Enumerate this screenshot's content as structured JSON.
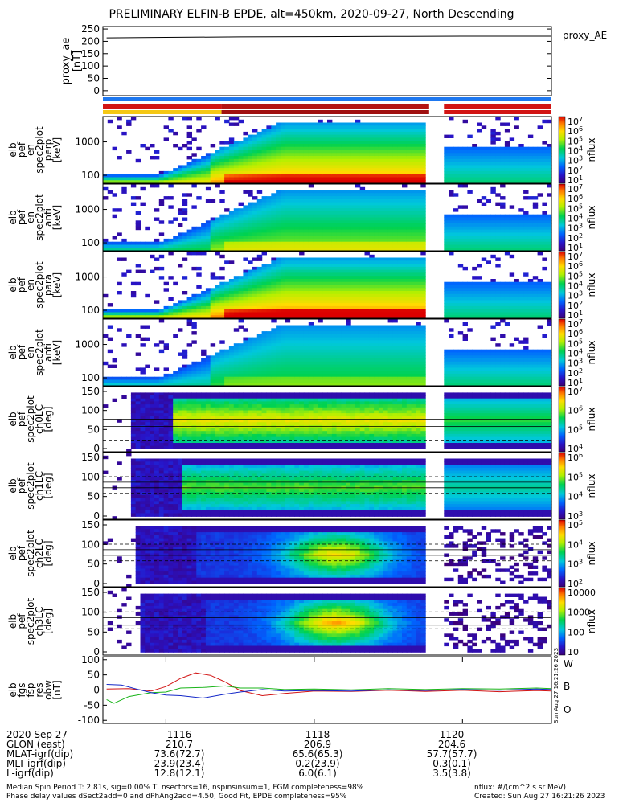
{
  "title": "PRELIMINARY ELFIN-B EPDE, alt=450km, 2020-09-27, North Descending",
  "colors": {
    "w_line": "#d21414",
    "b_line": "#19b419",
    "o_line": "#1428c8",
    "bar_blue": "#1e78f0",
    "bar_red": "#d21414",
    "bar_yellow": "#f5c814"
  },
  "chart_data": [
    {
      "type": "line",
      "panel": "proxy_ae",
      "ylabel": "proxy_ae [nT]",
      "legend": "proxy_AE",
      "yticks": [
        "250",
        "200",
        "150",
        "100",
        "50",
        "0"
      ],
      "ylim": [
        -20,
        260
      ],
      "x": [
        "1115.2",
        "1116.0",
        "1117.0",
        "1118.0",
        "1119.0",
        "1120.0",
        "1121.2"
      ],
      "values": [
        214,
        216,
        218,
        219,
        220,
        221,
        221
      ]
    },
    {
      "type": "heatmap",
      "panel": "elb pef en spec2plot perp",
      "ylabel": [
        "elb",
        "pef",
        "en",
        "spec2plot",
        "perp",
        "[keV]"
      ],
      "yticks": [
        "1000",
        "100"
      ],
      "colorbar_label": "nflux",
      "colorbar_ticks": [
        "10^7",
        "10^6",
        "10^5",
        "10^4",
        "10^3",
        "10^2",
        "10^1"
      ]
    },
    {
      "type": "heatmap",
      "panel": "elb pef en spec2plot anti",
      "ylabel": [
        "elb",
        "pef",
        "en",
        "spec2plot",
        "anti",
        "[keV]"
      ],
      "yticks": [
        "1000",
        "100"
      ],
      "colorbar_label": "nflux",
      "colorbar_ticks": [
        "10^7",
        "10^6",
        "10^5",
        "10^4",
        "10^3",
        "10^2",
        "10^1"
      ]
    },
    {
      "type": "heatmap",
      "panel": "elb pef en spec2plot para",
      "ylabel": [
        "elb",
        "pef",
        "en",
        "spec2plot",
        "para",
        "[keV]"
      ],
      "yticks": [
        "1000",
        "100"
      ],
      "colorbar_label": "nflux",
      "colorbar_ticks": [
        "10^7",
        "10^6",
        "10^5",
        "10^4",
        "10^3",
        "10^2",
        "10^1"
      ]
    },
    {
      "type": "heatmap",
      "panel": "elb pef en spec2plot anti",
      "ylabel": [
        "elb",
        "pef",
        "en",
        "spec2plot",
        "anti",
        "[keV]"
      ],
      "yticks": [
        "1000",
        "100"
      ],
      "colorbar_label": "nflux",
      "colorbar_ticks": [
        "10^7",
        "10^6",
        "10^5",
        "10^4",
        "10^3",
        "10^2",
        "10^1"
      ]
    },
    {
      "type": "heatmap",
      "panel": "elb pef spec2plot ch0LC",
      "ylabel": [
        "elb",
        "pef",
        "spec2plot",
        "ch0LC",
        "[deg]"
      ],
      "yticks": [
        "150",
        "100",
        "50",
        "0"
      ],
      "colorbar_label": "nflux",
      "colorbar_ticks": [
        "10^7",
        "10^6",
        "10^5",
        "10^4"
      ]
    },
    {
      "type": "heatmap",
      "panel": "elb pef spec2plot ch1LC",
      "ylabel": [
        "elb",
        "pef",
        "spec2plot",
        "ch1LC",
        "[deg]"
      ],
      "yticks": [
        "150",
        "100",
        "50",
        "0"
      ],
      "colorbar_label": "nflux",
      "colorbar_ticks": [
        "10^6",
        "10^5",
        "10^4",
        "10^3"
      ]
    },
    {
      "type": "heatmap",
      "panel": "elb pef spec2plot ch2LC",
      "ylabel": [
        "elb",
        "pef",
        "spec2plot",
        "ch2LC",
        "[deg]"
      ],
      "yticks": [
        "150",
        "100",
        "50",
        "0"
      ],
      "colorbar_label": "nflux",
      "colorbar_ticks": [
        "10^5",
        "10^4",
        "10^3",
        "10^2"
      ]
    },
    {
      "type": "heatmap",
      "panel": "elb pef spec2plot ch3LC",
      "ylabel": [
        "elb",
        "pef",
        "spec2plot",
        "ch3LC",
        "[deg]"
      ],
      "yticks": [
        "150",
        "100",
        "50",
        "0"
      ],
      "colorbar_label": "nflux",
      "colorbar_ticks": [
        "10000",
        "1000",
        "100",
        "10"
      ]
    },
    {
      "type": "line",
      "panel": "elb fgs fsp res obw",
      "ylabel": [
        "elb",
        "fgs",
        "fsp",
        "res",
        "obw",
        "[nT]"
      ],
      "yticks": [
        "100",
        "50",
        "0",
        "-50",
        "-100"
      ],
      "ylim": [
        -110,
        110
      ],
      "legend": [
        "W",
        "B",
        "O"
      ],
      "series": [
        {
          "name": "W",
          "x": [
            1115.2,
            1115.5,
            1115.8,
            1116.0,
            1116.2,
            1116.4,
            1116.6,
            1116.8,
            1117.0,
            1117.3,
            1117.6,
            1118.0,
            1118.5,
            1119.0,
            1119.5,
            1120.0,
            1120.5,
            1121.0,
            1121.2
          ],
          "values": [
            5,
            3,
            -2,
            10,
            40,
            55,
            50,
            25,
            0,
            -20,
            -10,
            -5,
            -3,
            -2,
            -3,
            -2,
            -4,
            -3,
            -2
          ]
        },
        {
          "name": "B",
          "x": [
            1115.2,
            1115.3,
            1115.5,
            1115.8,
            1116.0,
            1116.2,
            1116.5,
            1116.8,
            1117.0,
            1117.3,
            1117.6,
            1118.0,
            1118.5,
            1119.0,
            1119.5,
            1120.0,
            1120.5,
            1121.0,
            1121.2
          ],
          "values": [
            -30,
            -45,
            -20,
            -10,
            -5,
            5,
            10,
            12,
            8,
            5,
            3,
            2,
            2,
            3,
            3,
            3,
            5,
            5,
            6
          ]
        },
        {
          "name": "O",
          "x": [
            1115.2,
            1115.4,
            1115.6,
            1115.8,
            1116.0,
            1116.2,
            1116.5,
            1116.8,
            1117.0,
            1117.3,
            1117.6,
            1118.0,
            1118.5,
            1119.0,
            1119.5,
            1120.0,
            1120.5,
            1121.0,
            1121.2
          ],
          "values": [
            20,
            15,
            5,
            -10,
            -15,
            -20,
            -25,
            -15,
            -5,
            0,
            -2,
            -3,
            -2,
            -1,
            0,
            0,
            1,
            2,
            3
          ]
        }
      ]
    }
  ],
  "time_axis": {
    "row_labels": [
      "2020 Sep 27",
      "GLON (east)",
      "MLAT-igrf(dip)",
      "MLT-igrf(dip)",
      "L-igrf(dip)"
    ],
    "columns": [
      {
        "values": [
          "1116",
          "210.7",
          "73.6(72.7)",
          "23.9(23.4)",
          "12.8(12.1)"
        ]
      },
      {
        "values": [
          "1118",
          "206.9",
          "65.6(65.3)",
          "0.2(23.9)",
          "6.0(6.1)"
        ]
      },
      {
        "values": [
          "1120",
          "204.6",
          "57.7(57.7)",
          "0.3(0.1)",
          "3.5(3.8)"
        ]
      }
    ]
  },
  "footer": {
    "line1": "Median Spin Period T: 2.81s, sig=0.00% T, nsectors=16, nspinsinsum=1, FGM completeness=98%",
    "line2": "Phase delay values dSect2add=0 and dPhAng2add=4.50, Good Fit, EPDE completeness=95%",
    "units": "nflux: #/(cm^2 s sr MeV)",
    "created": "Created: Sun Aug 27 16:21:26 2023"
  },
  "side_stamp": "Sun Aug 27 16:21:26 2023"
}
